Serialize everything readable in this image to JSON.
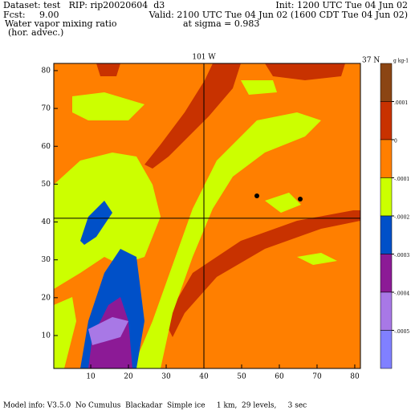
{
  "header": {
    "dataset": "Dataset: test   RIP: rip20020604  d3",
    "init": "Init: 1200 UTC Tue 04 Jun 02",
    "fcst": "Fcst:     9.00",
    "valid": "Valid: 2100 UTC Tue 04 Jun 02 (1600 CDT Tue 04 Jun 02)",
    "field": "Water vapor mixing ratio",
    "field_note": "(hor. advec.)",
    "level": "at sigma = 0.983"
  },
  "chart_data": {
    "type": "filled-contour",
    "xlim": [
      0.2,
      81.5
    ],
    "ylim": [
      1.3,
      81.9
    ],
    "xticks": [
      10,
      20,
      30,
      40,
      50,
      60,
      70,
      80
    ],
    "yticks": [
      10,
      20,
      30,
      40,
      50,
      60,
      70,
      80
    ],
    "crosshair": {
      "x": 40,
      "y": 41,
      "x_label": "101 W",
      "y_label": "37 N"
    },
    "colorbar": {
      "unit": "g kg-1",
      "colors": [
        "#8b4513",
        "#c83200",
        "#ff7f00",
        "#ccff00",
        "#0050c8",
        "#8c1a96",
        "#a878e6",
        "#8080ff"
      ],
      "levels": [
        {
          "value": 0.0001,
          "label": ".0001"
        },
        0,
        {
          "value": -0.0001,
          "label": "-.0001"
        },
        {
          "value": -0.0002,
          "label": "-.0002"
        },
        {
          "value": -0.0003,
          "label": "-.0003"
        },
        {
          "value": -0.0004,
          "label": "-.0004"
        },
        {
          "value": -0.0005,
          "label": "-.0005"
        }
      ]
    }
  },
  "footer": "Model info: V3.5.0  No Cumulus  Blackadar  Simple ice     1 km,  29 levels,     3 sec"
}
